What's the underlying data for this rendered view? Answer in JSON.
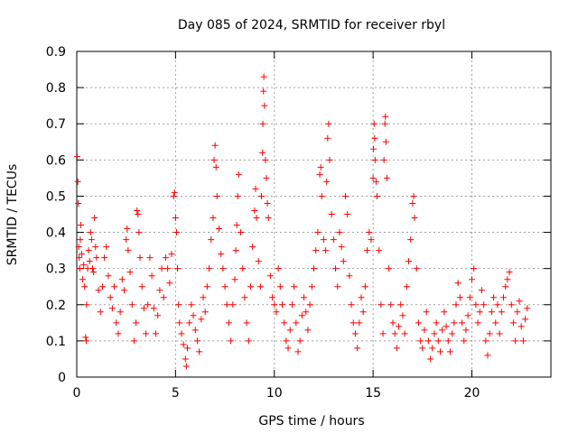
{
  "chart_data": {
    "type": "scatter",
    "title": "Day 085 of 2024, SRMTID for receiver rbyl",
    "xlabel": "GPS time / hours",
    "ylabel": "SRMTID / TECUs",
    "xlim": [
      0,
      24
    ],
    "ylim": [
      0,
      0.9
    ],
    "xticks": [
      0,
      5,
      10,
      15,
      20
    ],
    "xtick_labels": [
      "0",
      "5",
      "10",
      "15",
      "20"
    ],
    "yticks": [
      0,
      0.1,
      0.2,
      0.3,
      0.4,
      0.5,
      0.6,
      0.7,
      0.8,
      0.9
    ],
    "ytick_labels": [
      "0",
      "0.1",
      "0.2",
      "0.3",
      "0.4",
      "0.5",
      "0.6",
      "0.7",
      "0.8",
      "0.9"
    ],
    "grid": true,
    "marker": "+",
    "color": "#ff0000",
    "series": [
      {
        "name": "SRMTID",
        "points": [
          [
            0.02,
            0.61
          ],
          [
            0.05,
            0.54
          ],
          [
            0.08,
            0.48
          ],
          [
            0.1,
            0.36
          ],
          [
            0.12,
            0.33
          ],
          [
            0.15,
            0.3
          ],
          [
            0.18,
            0.38
          ],
          [
            0.2,
            0.42
          ],
          [
            0.25,
            0.34
          ],
          [
            0.3,
            0.27
          ],
          [
            0.35,
            0.31
          ],
          [
            0.4,
            0.25
          ],
          [
            0.45,
            0.11
          ],
          [
            0.48,
            0.1
          ],
          [
            0.5,
            0.2
          ],
          [
            0.55,
            0.3
          ],
          [
            0.6,
            0.35
          ],
          [
            0.65,
            0.32
          ],
          [
            0.7,
            0.4
          ],
          [
            0.75,
            0.38
          ],
          [
            0.8,
            0.3
          ],
          [
            0.85,
            0.29
          ],
          [
            0.9,
            0.44
          ],
          [
            0.95,
            0.36
          ],
          [
            1.0,
            0.33
          ],
          [
            1.1,
            0.24
          ],
          [
            1.2,
            0.18
          ],
          [
            1.3,
            0.25
          ],
          [
            1.4,
            0.33
          ],
          [
            1.5,
            0.36
          ],
          [
            1.6,
            0.28
          ],
          [
            1.7,
            0.22
          ],
          [
            1.8,
            0.19
          ],
          [
            1.9,
            0.25
          ],
          [
            2.0,
            0.15
          ],
          [
            2.1,
            0.12
          ],
          [
            2.2,
            0.18
          ],
          [
            2.3,
            0.27
          ],
          [
            2.4,
            0.24
          ],
          [
            2.5,
            0.38
          ],
          [
            2.55,
            0.41
          ],
          [
            2.6,
            0.35
          ],
          [
            2.7,
            0.29
          ],
          [
            2.8,
            0.2
          ],
          [
            2.9,
            0.1
          ],
          [
            3.0,
            0.15
          ],
          [
            3.05,
            0.46
          ],
          [
            3.1,
            0.45
          ],
          [
            3.15,
            0.4
          ],
          [
            3.2,
            0.33
          ],
          [
            3.3,
            0.25
          ],
          [
            3.4,
            0.19
          ],
          [
            3.5,
            0.12
          ],
          [
            3.6,
            0.2
          ],
          [
            3.7,
            0.33
          ],
          [
            3.8,
            0.28
          ],
          [
            3.9,
            0.19
          ],
          [
            4.0,
            0.12
          ],
          [
            4.1,
            0.17
          ],
          [
            4.2,
            0.24
          ],
          [
            4.3,
            0.3
          ],
          [
            4.4,
            0.22
          ],
          [
            4.5,
            0.33
          ],
          [
            4.6,
            0.3
          ],
          [
            4.7,
            0.26
          ],
          [
            4.8,
            0.34
          ],
          [
            4.9,
            0.5
          ],
          [
            4.95,
            0.51
          ],
          [
            5.0,
            0.44
          ],
          [
            5.05,
            0.4
          ],
          [
            5.1,
            0.3
          ],
          [
            5.15,
            0.2
          ],
          [
            5.2,
            0.15
          ],
          [
            5.3,
            0.12
          ],
          [
            5.4,
            0.09
          ],
          [
            5.5,
            0.05
          ],
          [
            5.55,
            0.03
          ],
          [
            5.6,
            0.08
          ],
          [
            5.7,
            0.15
          ],
          [
            5.8,
            0.2
          ],
          [
            5.9,
            0.17
          ],
          [
            6.0,
            0.13
          ],
          [
            6.1,
            0.1
          ],
          [
            6.2,
            0.07
          ],
          [
            6.3,
            0.16
          ],
          [
            6.4,
            0.22
          ],
          [
            6.5,
            0.18
          ],
          [
            6.6,
            0.25
          ],
          [
            6.7,
            0.3
          ],
          [
            6.8,
            0.38
          ],
          [
            6.9,
            0.44
          ],
          [
            6.95,
            0.6
          ],
          [
            7.0,
            0.64
          ],
          [
            7.05,
            0.58
          ],
          [
            7.1,
            0.5
          ],
          [
            7.2,
            0.41
          ],
          [
            7.3,
            0.34
          ],
          [
            7.4,
            0.3
          ],
          [
            7.5,
            0.25
          ],
          [
            7.6,
            0.2
          ],
          [
            7.7,
            0.15
          ],
          [
            7.8,
            0.1
          ],
          [
            7.9,
            0.2
          ],
          [
            8.0,
            0.27
          ],
          [
            8.05,
            0.35
          ],
          [
            8.1,
            0.42
          ],
          [
            8.15,
            0.5
          ],
          [
            8.2,
            0.56
          ],
          [
            8.3,
            0.4
          ],
          [
            8.4,
            0.3
          ],
          [
            8.5,
            0.22
          ],
          [
            8.6,
            0.15
          ],
          [
            8.7,
            0.1
          ],
          [
            8.8,
            0.25
          ],
          [
            8.9,
            0.36
          ],
          [
            9.0,
            0.46
          ],
          [
            9.05,
            0.52
          ],
          [
            9.1,
            0.44
          ],
          [
            9.2,
            0.32
          ],
          [
            9.3,
            0.25
          ],
          [
            9.35,
            0.5
          ],
          [
            9.4,
            0.62
          ],
          [
            9.42,
            0.7
          ],
          [
            9.45,
            0.79
          ],
          [
            9.47,
            0.83
          ],
          [
            9.5,
            0.75
          ],
          [
            9.55,
            0.6
          ],
          [
            9.6,
            0.55
          ],
          [
            9.65,
            0.48
          ],
          [
            9.7,
            0.44
          ],
          [
            9.8,
            0.28
          ],
          [
            9.9,
            0.22
          ],
          [
            10.0,
            0.2
          ],
          [
            10.1,
            0.18
          ],
          [
            10.2,
            0.3
          ],
          [
            10.3,
            0.25
          ],
          [
            10.4,
            0.2
          ],
          [
            10.5,
            0.15
          ],
          [
            10.6,
            0.1
          ],
          [
            10.7,
            0.08
          ],
          [
            10.8,
            0.13
          ],
          [
            10.9,
            0.2
          ],
          [
            11.0,
            0.25
          ],
          [
            11.1,
            0.15
          ],
          [
            11.2,
            0.07
          ],
          [
            11.3,
            0.1
          ],
          [
            11.4,
            0.17
          ],
          [
            11.5,
            0.22
          ],
          [
            11.6,
            0.18
          ],
          [
            11.7,
            0.13
          ],
          [
            11.8,
            0.2
          ],
          [
            11.9,
            0.25
          ],
          [
            12.0,
            0.3
          ],
          [
            12.1,
            0.35
          ],
          [
            12.2,
            0.4
          ],
          [
            12.3,
            0.56
          ],
          [
            12.35,
            0.58
          ],
          [
            12.4,
            0.5
          ],
          [
            12.5,
            0.38
          ],
          [
            12.6,
            0.35
          ],
          [
            12.65,
            0.54
          ],
          [
            12.7,
            0.66
          ],
          [
            12.75,
            0.7
          ],
          [
            12.8,
            0.6
          ],
          [
            12.9,
            0.45
          ],
          [
            13.0,
            0.38
          ],
          [
            13.1,
            0.3
          ],
          [
            13.2,
            0.25
          ],
          [
            13.3,
            0.4
          ],
          [
            13.4,
            0.36
          ],
          [
            13.5,
            0.32
          ],
          [
            13.6,
            0.5
          ],
          [
            13.7,
            0.45
          ],
          [
            13.8,
            0.28
          ],
          [
            13.9,
            0.2
          ],
          [
            14.0,
            0.15
          ],
          [
            14.1,
            0.12
          ],
          [
            14.2,
            0.08
          ],
          [
            14.3,
            0.15
          ],
          [
            14.4,
            0.22
          ],
          [
            14.5,
            0.18
          ],
          [
            14.6,
            0.25
          ],
          [
            14.7,
            0.35
          ],
          [
            14.8,
            0.4
          ],
          [
            14.9,
            0.38
          ],
          [
            15.0,
            0.55
          ],
          [
            15.02,
            0.63
          ],
          [
            15.05,
            0.7
          ],
          [
            15.08,
            0.66
          ],
          [
            15.1,
            0.6
          ],
          [
            15.15,
            0.54
          ],
          [
            15.2,
            0.5
          ],
          [
            15.3,
            0.35
          ],
          [
            15.4,
            0.2
          ],
          [
            15.5,
            0.12
          ],
          [
            15.55,
            0.6
          ],
          [
            15.6,
            0.7
          ],
          [
            15.62,
            0.72
          ],
          [
            15.65,
            0.65
          ],
          [
            15.7,
            0.55
          ],
          [
            15.8,
            0.3
          ],
          [
            15.9,
            0.2
          ],
          [
            16.0,
            0.15
          ],
          [
            16.1,
            0.12
          ],
          [
            16.2,
            0.08
          ],
          [
            16.3,
            0.14
          ],
          [
            16.4,
            0.2
          ],
          [
            16.5,
            0.17
          ],
          [
            16.6,
            0.12
          ],
          [
            16.7,
            0.25
          ],
          [
            16.8,
            0.32
          ],
          [
            16.9,
            0.38
          ],
          [
            17.0,
            0.48
          ],
          [
            17.05,
            0.5
          ],
          [
            17.1,
            0.44
          ],
          [
            17.2,
            0.3
          ],
          [
            17.3,
            0.15
          ],
          [
            17.4,
            0.1
          ],
          [
            17.5,
            0.08
          ],
          [
            17.6,
            0.13
          ],
          [
            17.7,
            0.18
          ],
          [
            17.8,
            0.1
          ],
          [
            17.9,
            0.05
          ],
          [
            18.0,
            0.08
          ],
          [
            18.1,
            0.12
          ],
          [
            18.2,
            0.15
          ],
          [
            18.3,
            0.1
          ],
          [
            18.4,
            0.07
          ],
          [
            18.5,
            0.13
          ],
          [
            18.6,
            0.18
          ],
          [
            18.7,
            0.14
          ],
          [
            18.8,
            0.1
          ],
          [
            18.9,
            0.07
          ],
          [
            19.0,
            0.12
          ],
          [
            19.1,
            0.15
          ],
          [
            19.2,
            0.2
          ],
          [
            19.3,
            0.26
          ],
          [
            19.4,
            0.22
          ],
          [
            19.5,
            0.15
          ],
          [
            19.6,
            0.1
          ],
          [
            19.7,
            0.13
          ],
          [
            19.8,
            0.17
          ],
          [
            19.9,
            0.22
          ],
          [
            20.0,
            0.27
          ],
          [
            20.1,
            0.3
          ],
          [
            20.2,
            0.2
          ],
          [
            20.3,
            0.15
          ],
          [
            20.4,
            0.18
          ],
          [
            20.5,
            0.24
          ],
          [
            20.6,
            0.2
          ],
          [
            20.7,
            0.1
          ],
          [
            20.8,
            0.06
          ],
          [
            20.9,
            0.12
          ],
          [
            21.0,
            0.18
          ],
          [
            21.1,
            0.22
          ],
          [
            21.2,
            0.15
          ],
          [
            21.3,
            0.2
          ],
          [
            21.4,
            0.12
          ],
          [
            21.5,
            0.18
          ],
          [
            21.6,
            0.22
          ],
          [
            21.7,
            0.25
          ],
          [
            21.8,
            0.27
          ],
          [
            21.9,
            0.29
          ],
          [
            22.0,
            0.2
          ],
          [
            22.1,
            0.15
          ],
          [
            22.2,
            0.1
          ],
          [
            22.3,
            0.18
          ],
          [
            22.4,
            0.21
          ],
          [
            22.5,
            0.14
          ],
          [
            22.6,
            0.1
          ],
          [
            22.7,
            0.16
          ],
          [
            22.8,
            0.19
          ]
        ]
      }
    ]
  }
}
